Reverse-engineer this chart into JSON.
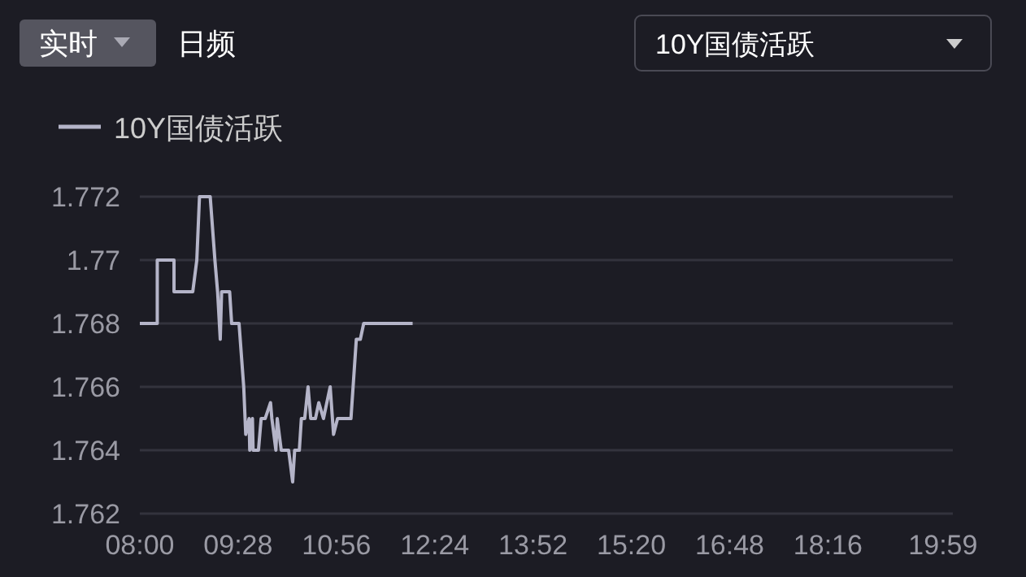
{
  "chart_data": {
    "type": "line",
    "annotations": [
      "实时",
      "日频",
      "10Y国债活跃"
    ],
    "series": [
      {
        "name": "10Y国债活跃",
        "color": "#b4b4c8",
        "x": [
          8.0,
          8.26,
          8.26,
          8.51,
          8.51,
          8.79,
          8.85,
          8.89,
          9.05,
          9.12,
          9.16,
          9.2,
          9.22,
          9.34,
          9.37,
          9.48,
          9.55,
          9.58,
          9.63,
          9.64,
          9.68,
          9.69,
          9.77,
          9.81,
          9.87,
          9.95,
          9.97,
          10.03,
          10.05,
          10.11,
          10.22,
          10.25,
          10.28,
          10.31,
          10.38,
          10.41,
          10.46,
          10.51,
          10.55,
          10.62,
          10.67,
          10.74,
          10.84,
          10.89,
          10.95,
          11.15,
          11.23,
          11.29,
          11.34,
          12.07
        ],
        "values": [
          1.768,
          1.768,
          1.77,
          1.77,
          1.769,
          1.769,
          1.77,
          1.772,
          1.772,
          1.77,
          1.769,
          1.7675,
          1.769,
          1.769,
          1.768,
          1.768,
          1.766,
          1.7645,
          1.765,
          1.764,
          1.765,
          1.764,
          1.764,
          1.765,
          1.765,
          1.7655,
          1.765,
          1.764,
          1.765,
          1.764,
          1.764,
          1.7635,
          1.763,
          1.764,
          1.764,
          1.765,
          1.765,
          1.766,
          1.765,
          1.765,
          1.7655,
          1.765,
          1.766,
          1.7645,
          1.765,
          1.765,
          1.7675,
          1.7675,
          1.768,
          1.768
        ]
      }
    ],
    "xlim": [
      8,
      20.13
    ],
    "xticks": [
      {
        "value": 8,
        "label": "08:00"
      },
      {
        "value": 9.4667,
        "label": "09:28"
      },
      {
        "value": 10.9333,
        "label": "10:56"
      },
      {
        "value": 12.4,
        "label": "12:24"
      },
      {
        "value": 13.8667,
        "label": "13:52"
      },
      {
        "value": 15.3333,
        "label": "15:20"
      },
      {
        "value": 16.8,
        "label": "16:48"
      },
      {
        "value": 18.2667,
        "label": "18:16"
      },
      {
        "value": 19.9833,
        "label": "19:59"
      }
    ],
    "ylim": [
      1.762,
      1.772
    ],
    "yticks": [
      1.762,
      1.764,
      1.766,
      1.768,
      1.77,
      1.772
    ],
    "grid": "y",
    "legend": "top left",
    "marker": "none",
    "line_style": "solid"
  }
}
